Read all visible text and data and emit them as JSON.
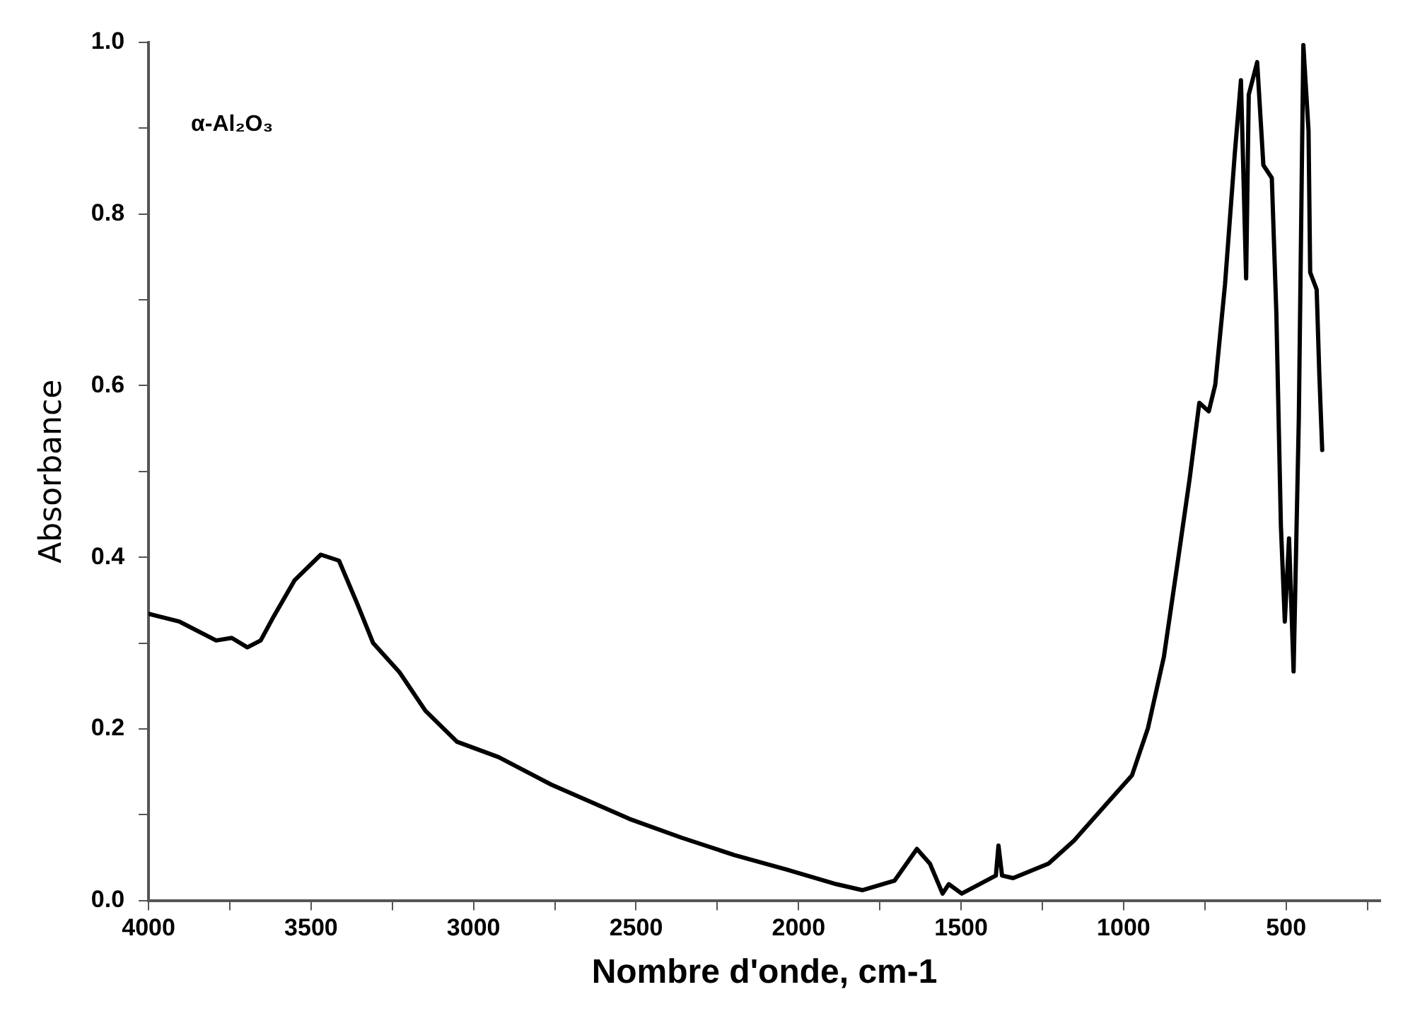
{
  "chart_data": {
    "type": "line",
    "xlabel": "Nombre d'onde, cm-1",
    "ylabel": "Absorbance",
    "annotations": [
      "α-Al₂O₃"
    ],
    "xlim": [
      4000,
      210
    ],
    "xticks": [
      4000,
      {
        "value": 3750,
        "label": null
      },
      3500,
      {
        "value": 3250,
        "label": null
      },
      3000,
      {
        "value": 2750,
        "label": null
      },
      2500,
      {
        "value": 2250,
        "label": null
      },
      2000,
      {
        "value": 1750,
        "label": null
      },
      1500,
      {
        "value": 1250,
        "label": null
      },
      1000,
      {
        "value": 750,
        "label": null
      },
      500,
      {
        "value": 250,
        "label": null
      }
    ],
    "ylim": [
      0,
      1.0
    ],
    "yticks": [
      {
        "value": 0,
        "label": "0.0"
      },
      {
        "value": 0.1,
        "label": null
      },
      {
        "value": 0.2,
        "label": "0.2"
      },
      {
        "value": 0.3,
        "label": null
      },
      {
        "value": 0.4,
        "label": "0.4"
      },
      {
        "value": 0.5,
        "label": null
      },
      {
        "value": 0.6,
        "label": "0.6"
      },
      {
        "value": 0.7,
        "label": null
      },
      {
        "value": 0.8,
        "label": "0.8"
      },
      {
        "value": 0.9,
        "label": null
      },
      {
        "value": 1.0,
        "label": "1.0"
      }
    ],
    "grid": false,
    "legend": false,
    "marker": "none",
    "line_style": "solid",
    "series": [
      {
        "color": "#000000",
        "x": [
          4000,
          3905,
          3792,
          3744,
          3696,
          3655,
          3615,
          3551,
          3470,
          3414,
          3357,
          3309,
          3228,
          3148,
          3051,
          2923,
          2761,
          2520,
          2359,
          2198,
          2037,
          1884,
          1804,
          1705,
          1636,
          1596,
          1557,
          1538,
          1498,
          1428,
          1393,
          1385,
          1374,
          1340,
          1231,
          1152,
          1054,
          974,
          925,
          876,
          836,
          797,
          767,
          738,
          718,
          688,
          658,
          639,
          623,
          615,
          589,
          570,
          544,
          530,
          516,
          504,
          491,
          477,
          461,
          447,
          431,
          426,
          406,
          398,
          389
        ],
        "values": [
          0.334,
          0.325,
          0.303,
          0.306,
          0.295,
          0.303,
          0.331,
          0.373,
          0.403,
          0.396,
          0.345,
          0.3,
          0.266,
          0.221,
          0.185,
          0.167,
          0.135,
          0.095,
          0.073,
          0.053,
          0.036,
          0.019,
          0.012,
          0.023,
          0.06,
          0.043,
          0.008,
          0.019,
          0.008,
          0.022,
          0.029,
          0.064,
          0.029,
          0.026,
          0.043,
          0.07,
          0.112,
          0.146,
          0.201,
          0.284,
          0.388,
          0.491,
          0.58,
          0.57,
          0.601,
          0.718,
          0.87,
          0.956,
          0.725,
          0.939,
          0.977,
          0.857,
          0.842,
          0.684,
          0.436,
          0.325,
          0.422,
          0.267,
          0.56,
          0.997,
          0.897,
          0.732,
          0.712,
          0.615,
          0.525
        ]
      }
    ]
  }
}
